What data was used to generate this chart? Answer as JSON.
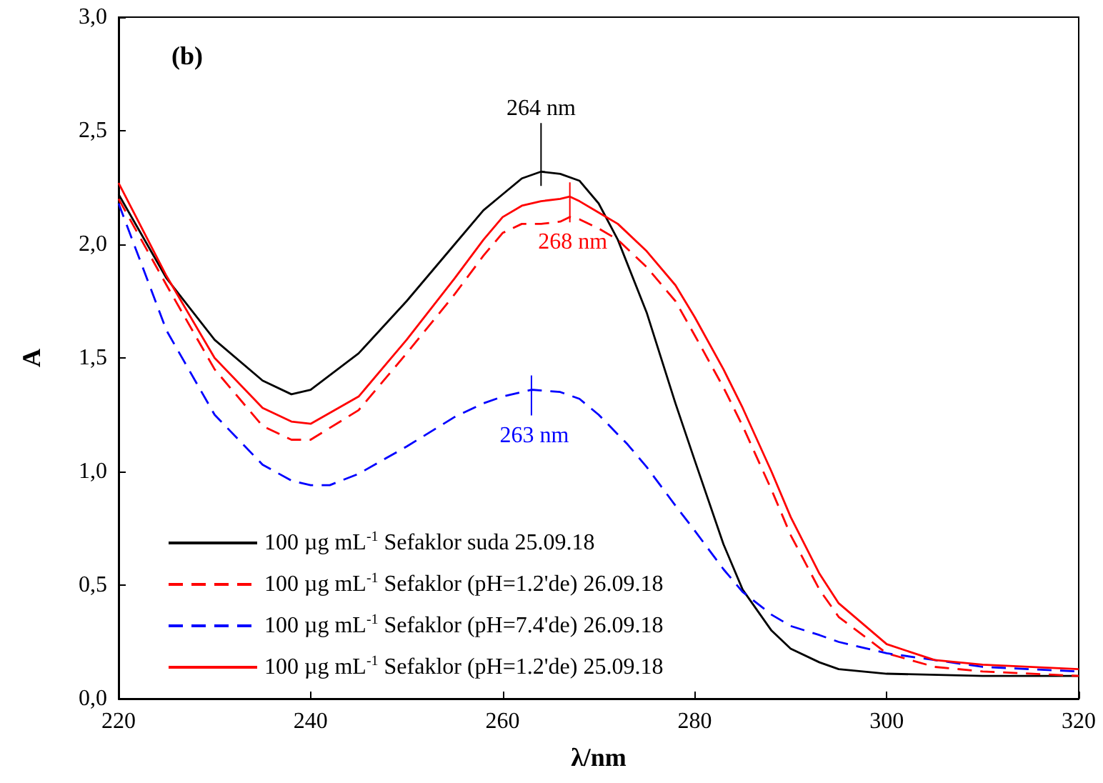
{
  "chart_data": {
    "type": "line",
    "xlabel": "λ/nm",
    "ylabel": "A",
    "xlim": [
      220,
      320
    ],
    "xticks": [
      220,
      240,
      260,
      280,
      300,
      320
    ],
    "ylim": [
      0,
      3
    ],
    "yticks": [
      {
        "value": 0,
        "label": "0,0"
      },
      {
        "value": 0.5,
        "label": "0,5"
      },
      {
        "value": 1,
        "label": "1,0"
      },
      {
        "value": 1.5,
        "label": "1,5"
      },
      {
        "value": 2,
        "label": "2,0"
      },
      {
        "value": 2.5,
        "label": "2,5"
      },
      {
        "value": 3,
        "label": "3,0"
      }
    ],
    "grid": false,
    "legend": "bottom left",
    "marker": "none",
    "annotations": [
      "(b)",
      {
        "text": "264 nm",
        "x": 264,
        "y": 2.32
      },
      {
        "text": "268 nm",
        "x": 267,
        "y": 2.21
      },
      {
        "text": "263 nm",
        "x": 263,
        "y": 1.36
      }
    ],
    "series": [
      {
        "name": "100 µg mL$^{-1}$ Sefaklor suda 25.09.18",
        "color": "#000000",
        "line_style": "solid",
        "x": [
          220,
          225,
          230,
          235,
          238,
          240,
          245,
          250,
          255,
          258,
          260,
          262,
          264,
          266,
          268,
          270,
          272,
          275,
          278,
          280,
          283,
          285,
          288,
          290,
          293,
          295,
          300,
          310,
          320
        ],
        "values": [
          2.22,
          1.85,
          1.58,
          1.4,
          1.34,
          1.36,
          1.52,
          1.75,
          2.0,
          2.15,
          2.22,
          2.29,
          2.32,
          2.31,
          2.28,
          2.18,
          2.02,
          1.7,
          1.3,
          1.05,
          0.68,
          0.48,
          0.3,
          0.22,
          0.16,
          0.13,
          0.11,
          0.1,
          0.1
        ]
      },
      {
        "name": "100 µg mL$^{-1}$ Sefaklor (pH=1.2'de) 26.09.18",
        "color": "#ff0000",
        "line_style": "dashed",
        "x": [
          220,
          225,
          230,
          235,
          238,
          240,
          245,
          250,
          255,
          258,
          260,
          262,
          264,
          266,
          267,
          268,
          270,
          272,
          275,
          278,
          280,
          283,
          285,
          288,
          290,
          293,
          295,
          300,
          305,
          310,
          320
        ],
        "values": [
          2.2,
          1.82,
          1.45,
          1.2,
          1.14,
          1.14,
          1.27,
          1.52,
          1.78,
          1.95,
          2.05,
          2.09,
          2.09,
          2.1,
          2.12,
          2.11,
          2.07,
          2.02,
          1.9,
          1.75,
          1.6,
          1.37,
          1.2,
          0.92,
          0.72,
          0.48,
          0.36,
          0.2,
          0.14,
          0.12,
          0.1
        ]
      },
      {
        "name": "100 µg mL$^{-1}$ Sefaklor (pH=7.4'de) 26.09.18",
        "color": "#0000ff",
        "line_style": "dashed",
        "x": [
          220,
          225,
          230,
          235,
          238,
          240,
          242,
          245,
          250,
          255,
          258,
          260,
          263,
          266,
          268,
          270,
          273,
          275,
          278,
          280,
          283,
          285,
          288,
          290,
          293,
          295,
          300,
          305,
          310,
          320
        ],
        "values": [
          2.18,
          1.62,
          1.25,
          1.03,
          0.96,
          0.94,
          0.94,
          0.99,
          1.11,
          1.24,
          1.3,
          1.33,
          1.36,
          1.35,
          1.32,
          1.25,
          1.12,
          1.02,
          0.85,
          0.74,
          0.57,
          0.47,
          0.37,
          0.32,
          0.28,
          0.25,
          0.2,
          0.17,
          0.14,
          0.12
        ]
      },
      {
        "name": "100 µg mL$^{-1}$ Sefaklor (pH=1.2'de) 25.09.18",
        "color": "#ff0000",
        "line_style": "solid",
        "x": [
          220,
          225,
          230,
          235,
          238,
          240,
          245,
          250,
          255,
          258,
          260,
          262,
          264,
          266,
          267,
          268,
          270,
          272,
          275,
          278,
          280,
          283,
          285,
          288,
          290,
          293,
          295,
          300,
          305,
          310,
          320
        ],
        "values": [
          2.27,
          1.86,
          1.5,
          1.28,
          1.22,
          1.21,
          1.33,
          1.58,
          1.85,
          2.02,
          2.12,
          2.17,
          2.19,
          2.2,
          2.21,
          2.19,
          2.14,
          2.09,
          1.97,
          1.82,
          1.68,
          1.45,
          1.28,
          1.0,
          0.8,
          0.55,
          0.42,
          0.24,
          0.17,
          0.15,
          0.13
        ]
      }
    ]
  }
}
